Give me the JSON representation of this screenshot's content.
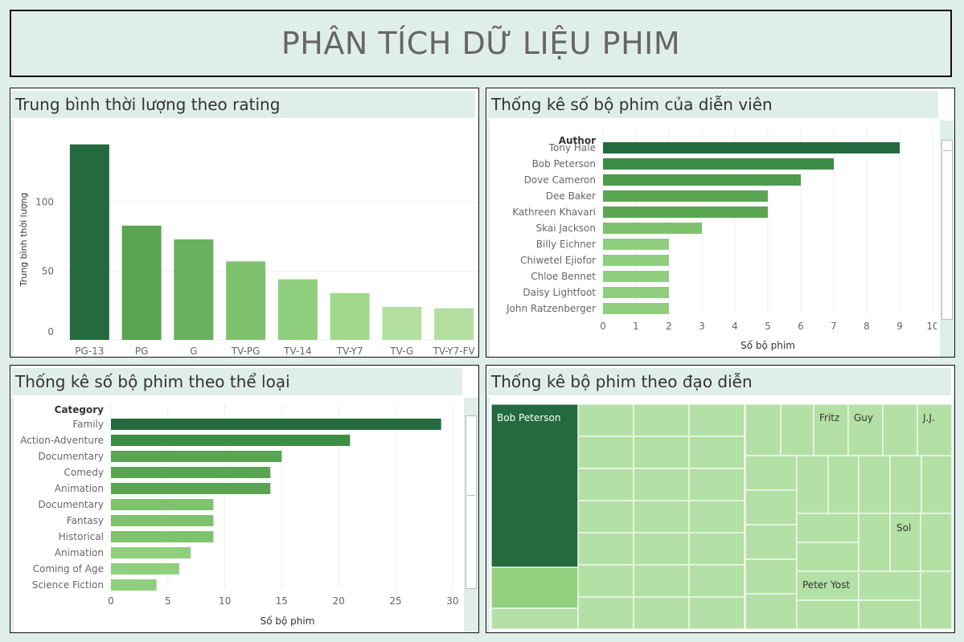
{
  "page": {
    "title": "PHÂN TÍCH DỮ LIỆU PHIM"
  },
  "panels": {
    "rating": {
      "title": "Trung bình thời lượng theo rating"
    },
    "actors": {
      "title": "Thống kê số bộ phim của diễn viên"
    },
    "category": {
      "title": "Thống kê số bộ phim theo thể loại"
    },
    "director": {
      "title": "Thống kê bộ phim theo đạo diễn"
    }
  },
  "chart_data": [
    {
      "type": "bar",
      "categories": [
        "PG-13",
        "PG",
        "G",
        "TV-PG",
        "TV-14",
        "TV-Y7",
        "TV-G",
        "TV-Y7-FV"
      ],
      "values": [
        142,
        83,
        73,
        57,
        44,
        34,
        24,
        23
      ],
      "ylabel": "Trung bình thời lượng",
      "yticks": [
        0,
        50,
        100
      ],
      "ylim": [
        0,
        150
      ],
      "colors": [
        "#236b3f",
        "#5aa552",
        "#68b05d",
        "#7fc26e",
        "#8fcf7d",
        "#a0d98d",
        "#b3e0a1",
        "#b3e0a1"
      ]
    },
    {
      "type": "bar",
      "orientation": "horizontal",
      "categories_header": "Author",
      "categories": [
        "Tony Hale",
        "Bob Peterson",
        "Dove Cameron",
        "Dee Baker",
        "Kathreen Khavari",
        "Skai Jackson",
        "Billy Eichner",
        "Chiwetel Ejiofor",
        "Chloe Bennet",
        "Daisy Lightfoot",
        "John Ratzenberger"
      ],
      "values": [
        9,
        7,
        6,
        5,
        5,
        3,
        2,
        2,
        2,
        2,
        2
      ],
      "xlabel": "Số bộ phim",
      "xticks": [
        0,
        1,
        2,
        3,
        4,
        5,
        6,
        7,
        8,
        9,
        10
      ],
      "xlim": [
        0,
        10
      ],
      "colors": [
        "#236b3f",
        "#3d8c46",
        "#4c9a4b",
        "#5aa552",
        "#5aa552",
        "#7fc26e",
        "#8fcf7d",
        "#8fcf7d",
        "#8fcf7d",
        "#8fcf7d",
        "#8fcf7d"
      ]
    },
    {
      "type": "bar",
      "orientation": "horizontal",
      "categories_header": "Category",
      "categories": [
        "Family",
        "Action-Adventure",
        "Documentary",
        "Comedy",
        "Animation",
        "Documentary",
        "Fantasy",
        "Historical",
        "Animation",
        "Coming of Age",
        "Science Fiction"
      ],
      "values": [
        29,
        21,
        15,
        14,
        14,
        9,
        9,
        9,
        7,
        6,
        4
      ],
      "xlabel": "Số bộ phim",
      "xticks": [
        0,
        5,
        10,
        15,
        20,
        25,
        30
      ],
      "xlim": [
        0,
        31
      ],
      "colors": [
        "#236b3f",
        "#3d8c46",
        "#5aa552",
        "#5aa552",
        "#5aa552",
        "#7fc26e",
        "#7fc26e",
        "#7fc26e",
        "#8fcf7d",
        "#8fcf7d",
        "#8fcf7d"
      ]
    },
    {
      "type": "treemap",
      "labels": [
        "Bob Peterson",
        "Fritz",
        "Guy",
        "J.J.",
        "Sol",
        "Peter Yost"
      ],
      "colors": {
        "dark": "#236b3f",
        "medium": "#93d07d",
        "light": "#b3e0a4"
      }
    }
  ]
}
